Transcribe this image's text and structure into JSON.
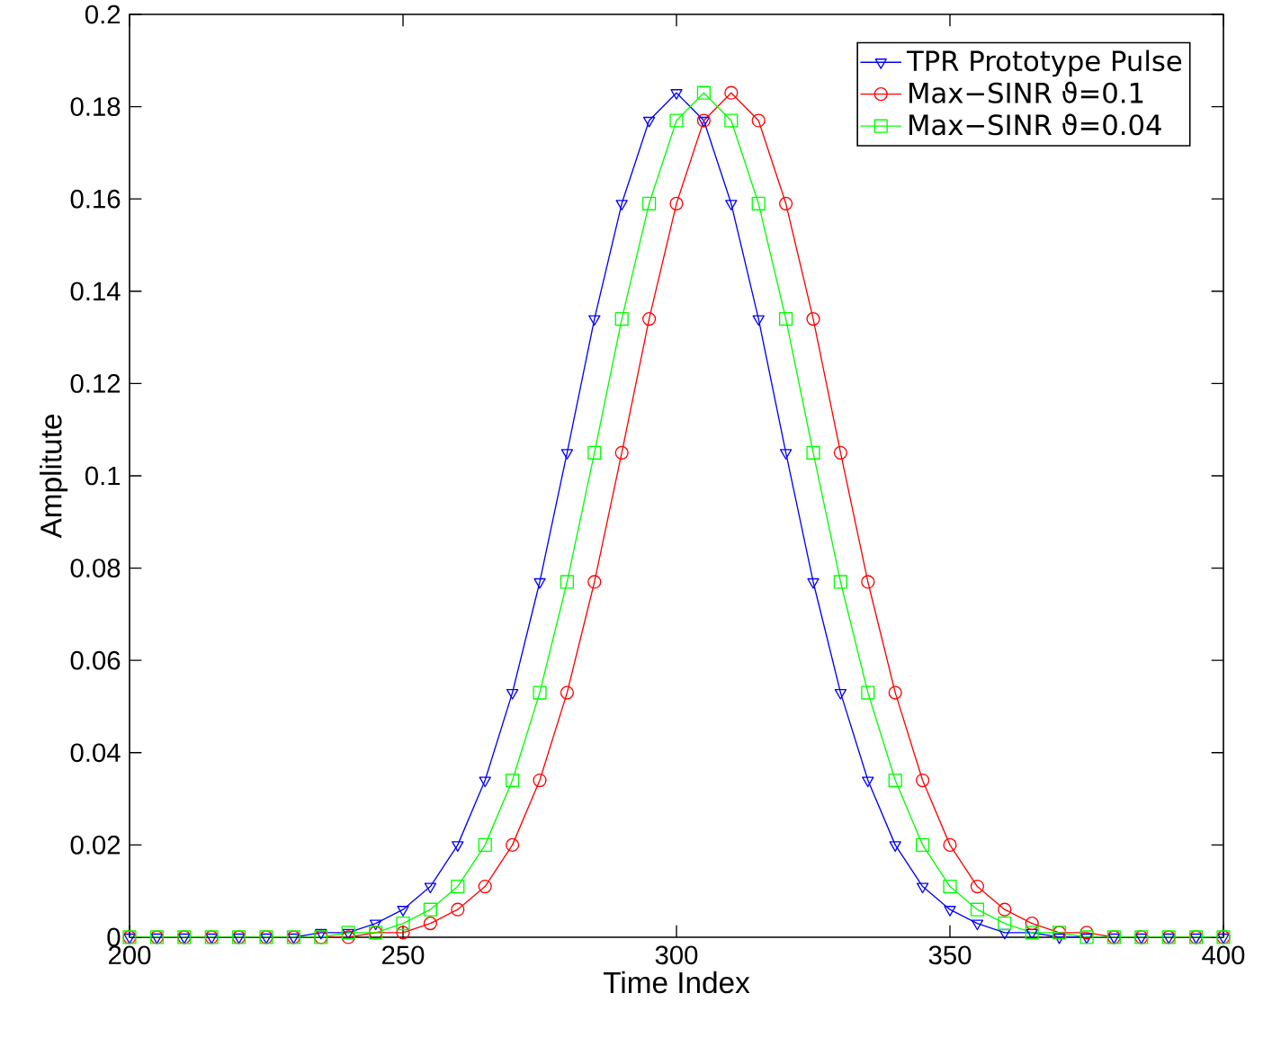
{
  "chart_data": {
    "type": "line",
    "xlabel": "Time Index",
    "ylabel": "Amplitute",
    "x": [
      200,
      205,
      210,
      215,
      220,
      225,
      230,
      235,
      240,
      245,
      250,
      255,
      260,
      265,
      270,
      275,
      280,
      285,
      290,
      295,
      300,
      305,
      310,
      315,
      320,
      325,
      330,
      335,
      340,
      345,
      350,
      355,
      360,
      365,
      370,
      375,
      380,
      385,
      390,
      395,
      400
    ],
    "series": [
      {
        "name": "TPR Prototype Pulse",
        "color": "#0000ff",
        "marker": "triangle",
        "values": [
          0,
          0,
          0,
          0,
          0,
          0,
          0,
          0.001,
          0.001,
          0.003,
          0.006,
          0.011,
          0.02,
          0.034,
          0.053,
          0.077,
          0.105,
          0.134,
          0.159,
          0.177,
          0.183,
          0.177,
          0.159,
          0.134,
          0.105,
          0.077,
          0.053,
          0.034,
          0.02,
          0.011,
          0.006,
          0.003,
          0.001,
          0.001,
          0,
          0,
          0,
          0,
          0,
          0,
          0
        ]
      },
      {
        "name": "Max−SINR ϑ=0.1",
        "color": "#ff0000",
        "marker": "circle",
        "values": [
          0,
          0,
          0,
          0,
          0,
          0,
          0,
          0,
          0,
          0.001,
          0.001,
          0.003,
          0.006,
          0.011,
          0.02,
          0.034,
          0.053,
          0.077,
          0.105,
          0.134,
          0.159,
          0.177,
          0.183,
          0.177,
          0.159,
          0.134,
          0.105,
          0.077,
          0.053,
          0.034,
          0.02,
          0.011,
          0.006,
          0.003,
          0.001,
          0.001,
          0,
          0,
          0,
          0,
          0
        ]
      },
      {
        "name": "Max−SINR ϑ=0.04",
        "color": "#00ff00",
        "marker": "square",
        "values": [
          0,
          0,
          0,
          0,
          0,
          0,
          0,
          0,
          0.001,
          0.001,
          0.003,
          0.006,
          0.011,
          0.02,
          0.034,
          0.053,
          0.077,
          0.105,
          0.134,
          0.159,
          0.177,
          0.183,
          0.177,
          0.159,
          0.134,
          0.105,
          0.077,
          0.053,
          0.034,
          0.02,
          0.011,
          0.006,
          0.003,
          0.001,
          0.001,
          0,
          0,
          0,
          0,
          0,
          0
        ]
      }
    ],
    "xlim": [
      200,
      400
    ],
    "ylim": [
      0,
      0.2
    ],
    "xticks": [
      200,
      250,
      300,
      350,
      400
    ],
    "yticks": [
      0,
      0.02,
      0.04,
      0.06,
      0.08,
      0.1,
      0.12,
      0.14,
      0.16,
      0.18,
      0.2
    ],
    "grid": false,
    "legend": "top right",
    "line_style": "solid"
  }
}
